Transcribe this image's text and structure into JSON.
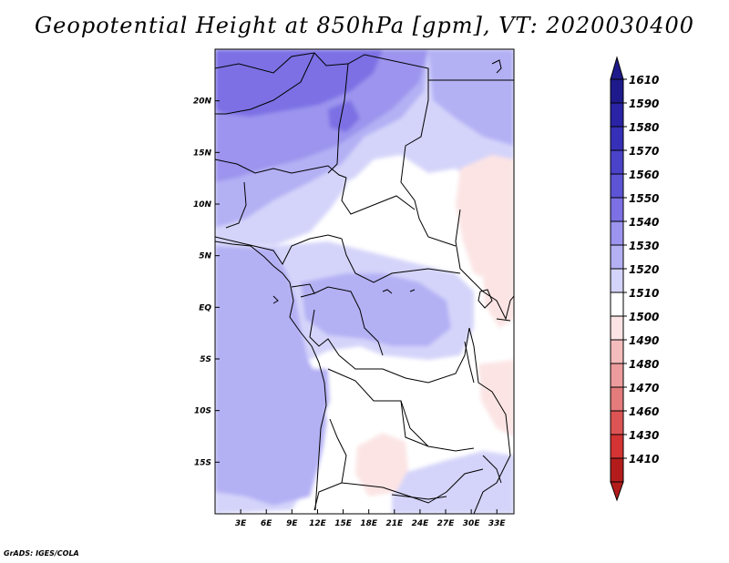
{
  "title": "Geopotential Height at 850hPa [gpm], VT: 2020030400",
  "credit": "GrADS: IGES/COLA",
  "colors": {
    "background": "#ffffff",
    "border": "#000000",
    "ocean_low": "#b4b0f4",
    "north_high": "#7c70e4",
    "north_mid": "#9c94ee",
    "light": "#d4d4fa",
    "neutral": "#ffffff",
    "warm": "#fce4e4"
  },
  "chart_data": {
    "type": "heatmap",
    "variable": "Geopotential Height",
    "level": "850hPa",
    "units": "gpm",
    "valid_time": "2020030400",
    "x_axis": {
      "range_deg": [
        0,
        35
      ],
      "ticks": [
        {
          "value": 3,
          "label": "3E"
        },
        {
          "value": 6,
          "label": "6E"
        },
        {
          "value": 9,
          "label": "9E"
        },
        {
          "value": 12,
          "label": "12E"
        },
        {
          "value": 15,
          "label": "15E"
        },
        {
          "value": 18,
          "label": "18E"
        },
        {
          "value": 21,
          "label": "21E"
        },
        {
          "value": 24,
          "label": "24E"
        },
        {
          "value": 27,
          "label": "27E"
        },
        {
          "value": 30,
          "label": "30E"
        },
        {
          "value": 33,
          "label": "33E"
        }
      ]
    },
    "y_axis": {
      "range_deg": [
        -20,
        25
      ],
      "ticks": [
        {
          "value": 20,
          "label": "20N"
        },
        {
          "value": 15,
          "label": "15N"
        },
        {
          "value": 10,
          "label": "10N"
        },
        {
          "value": 5,
          "label": "5N"
        },
        {
          "value": 0,
          "label": "EQ"
        },
        {
          "value": -5,
          "label": "5S"
        },
        {
          "value": -10,
          "label": "10S"
        },
        {
          "value": -15,
          "label": "15S"
        }
      ]
    },
    "colorbar": {
      "levels": [
        {
          "label": "1610",
          "color": "#1e1a8c"
        },
        {
          "label": "1590",
          "color": "#2a23a6"
        },
        {
          "label": "1580",
          "color": "#3630b8"
        },
        {
          "label": "1570",
          "color": "#4a42c8"
        },
        {
          "label": "1560",
          "color": "#5c54d4"
        },
        {
          "label": "1550",
          "color": "#7c70e4"
        },
        {
          "label": "1540",
          "color": "#9c94ee"
        },
        {
          "label": "1530",
          "color": "#b4b0f4"
        },
        {
          "label": "1520",
          "color": "#d4d4fa"
        },
        {
          "label": "1510",
          "color": "#ffffff"
        },
        {
          "label": "1500",
          "color": "#fce4e4"
        },
        {
          "label": "1490",
          "color": "#f4bcbc"
        },
        {
          "label": "1480",
          "color": "#ec9c9c"
        },
        {
          "label": "1470",
          "color": "#e47c7c"
        },
        {
          "label": "1460",
          "color": "#dc5454"
        },
        {
          "label": "1430",
          "color": "#d43434"
        },
        {
          "label": "1410",
          "color": "#b41c1c"
        }
      ],
      "below_color": "#b41c1c",
      "above_color": "#1e1a8c"
    }
  }
}
